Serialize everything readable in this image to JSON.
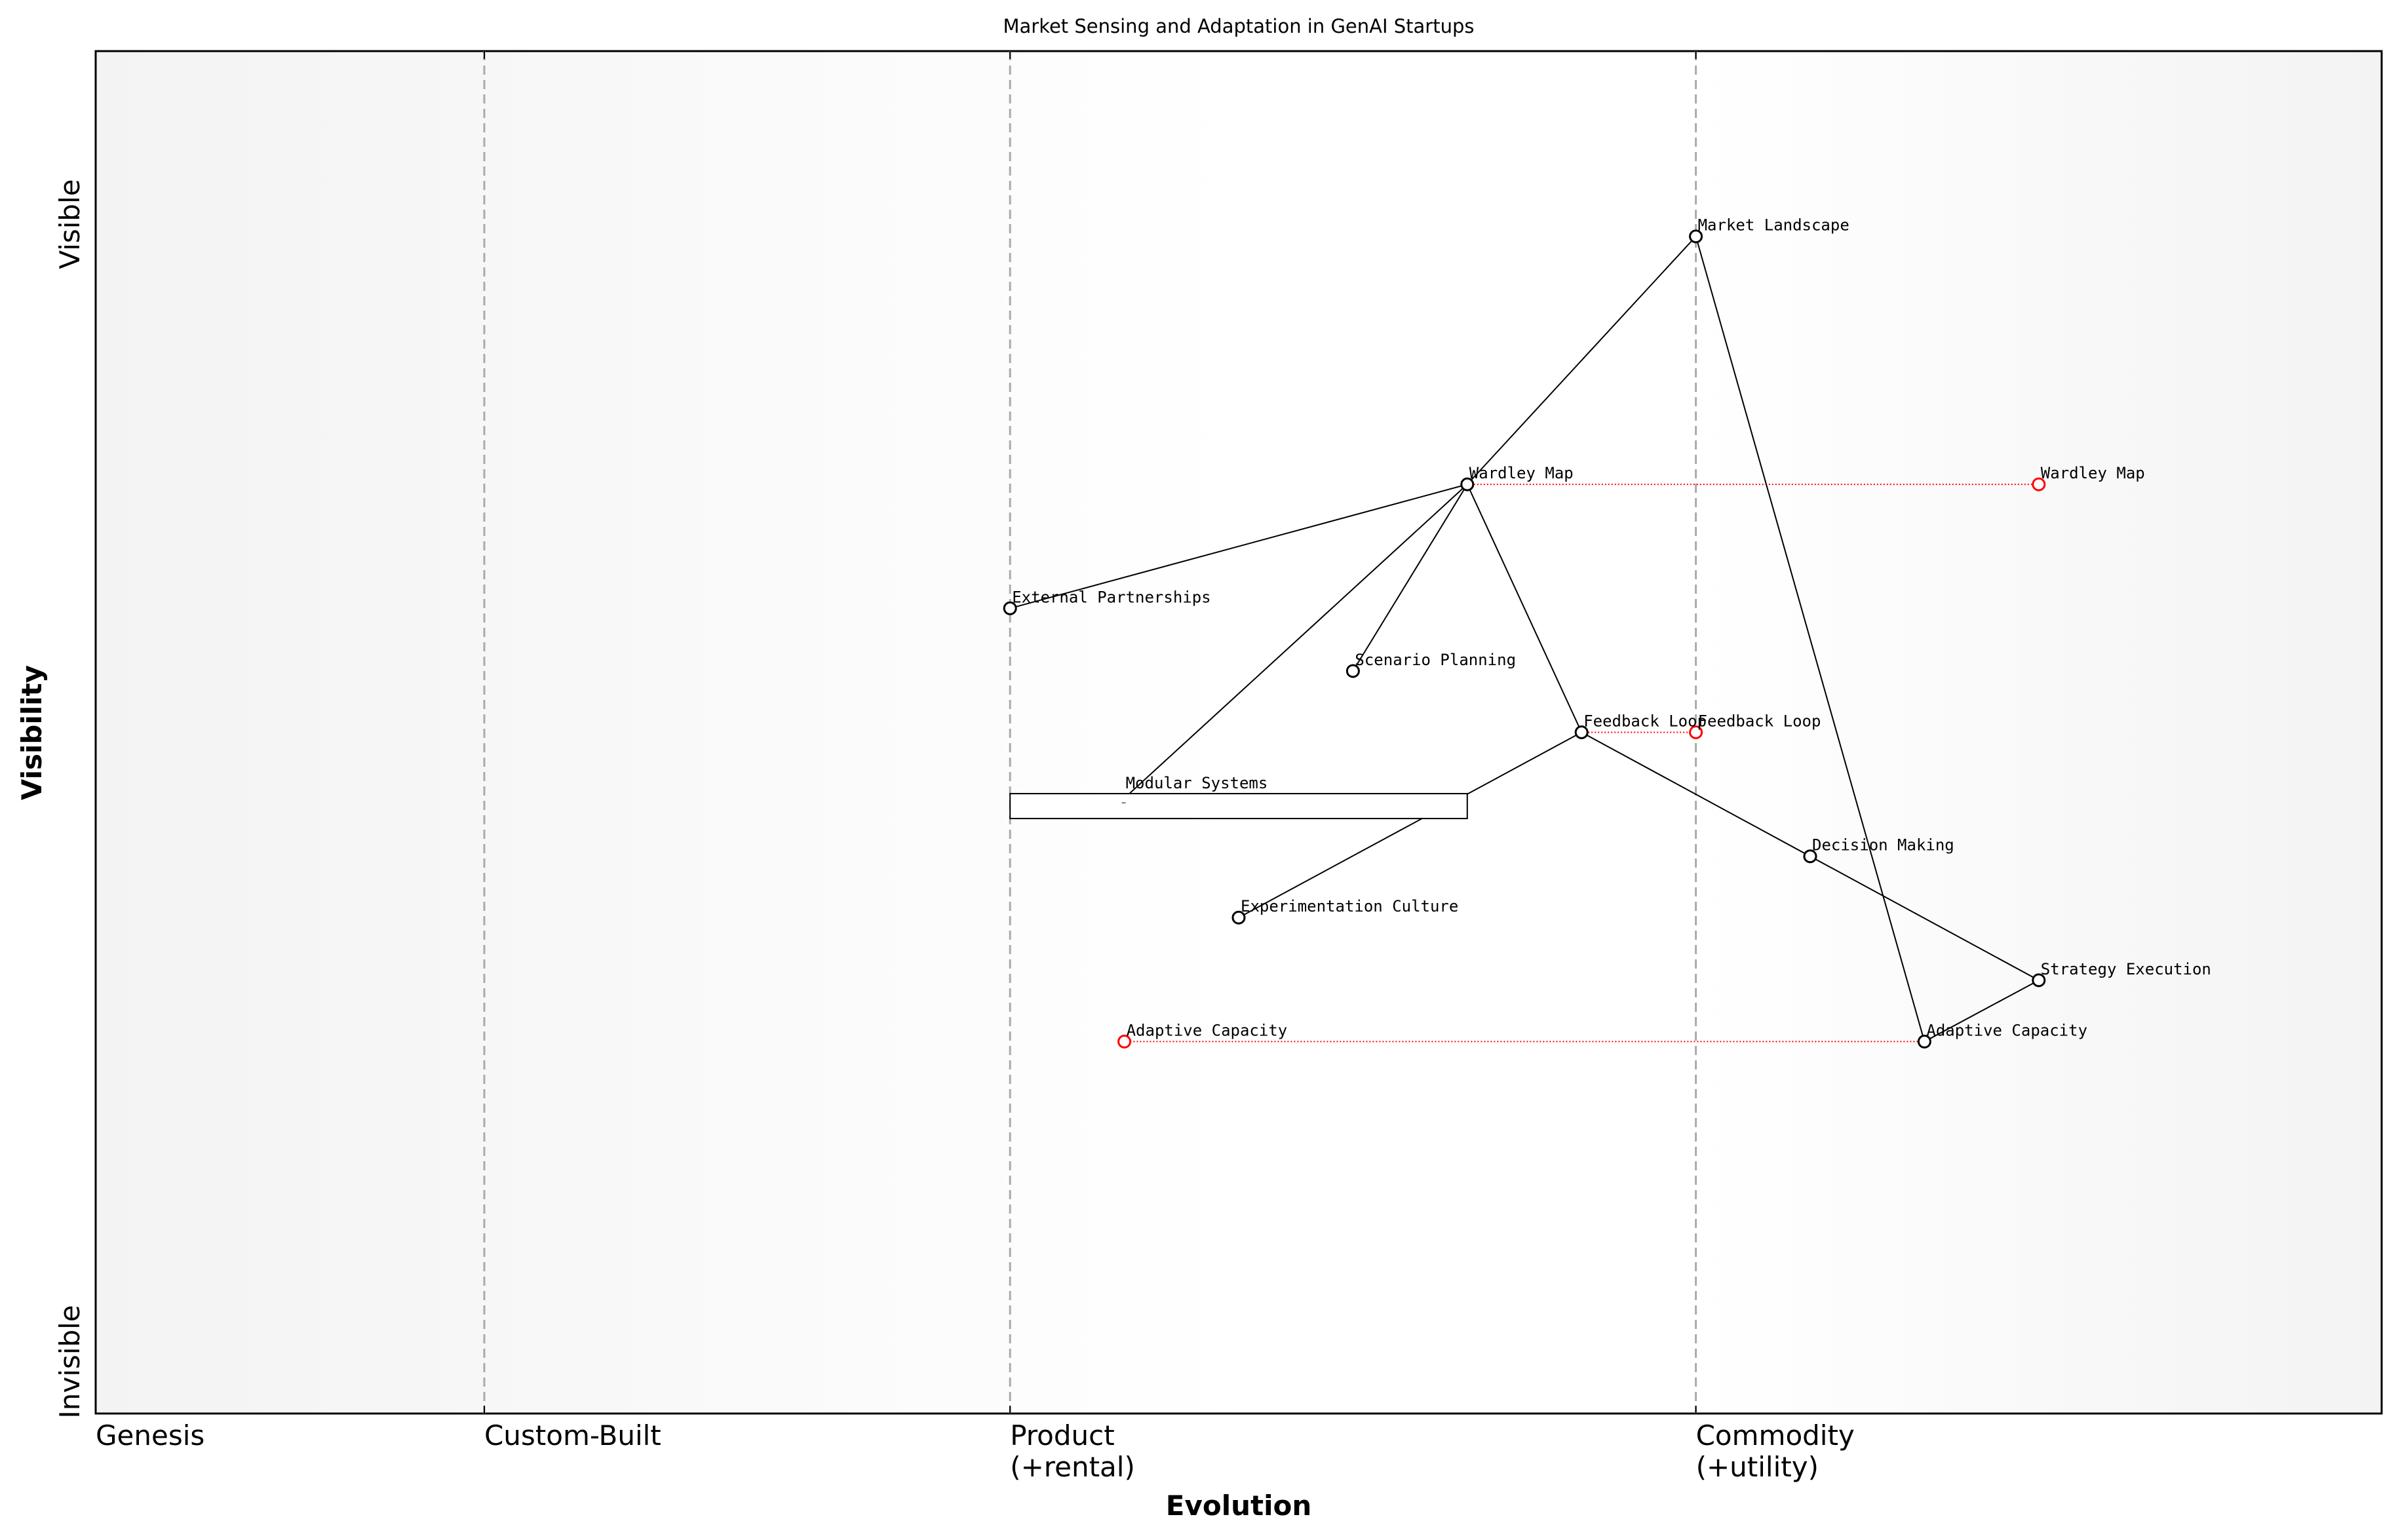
{
  "title": "Market Sensing and Adaptation in GenAI Startups",
  "xlabel": "Evolution",
  "ylabel": "Visibility",
  "y_ticks": {
    "top": "Visible",
    "bottom": "Invisible"
  },
  "stages": [
    {
      "label": "Genesis",
      "x": 0.0
    },
    {
      "label": "Custom-Built",
      "x": 0.17
    },
    {
      "label": "Product",
      "sublabel": "(+rental)",
      "x": 0.4
    },
    {
      "label": "Commodity",
      "sublabel": "(+utility)",
      "x": 0.7
    }
  ],
  "chart_data": {
    "type": "scatter",
    "title": "Market Sensing and Adaptation in GenAI Startups",
    "xlabel": "Evolution",
    "ylabel": "Visibility",
    "xlim": [
      0,
      1
    ],
    "ylim": [
      0,
      1
    ],
    "grid": false,
    "components": [
      {
        "id": "market",
        "name": "Market Landscape",
        "x": 0.7,
        "y": 0.864
      },
      {
        "id": "wardley",
        "name": "Wardley Map",
        "x": 0.6,
        "y": 0.682
      },
      {
        "id": "external",
        "name": "External Partnerships",
        "x": 0.4,
        "y": 0.591
      },
      {
        "id": "scenario",
        "name": "Scenario Planning",
        "x": 0.55,
        "y": 0.545
      },
      {
        "id": "feedback",
        "name": "Feedback Loop",
        "x": 0.65,
        "y": 0.5
      },
      {
        "id": "decision",
        "name": "Decision Making",
        "x": 0.75,
        "y": 0.409
      },
      {
        "id": "experiment",
        "name": "Experimentation Culture",
        "x": 0.5,
        "y": 0.364
      },
      {
        "id": "strategy",
        "name": "Strategy Execution",
        "x": 0.85,
        "y": 0.318
      },
      {
        "id": "adaptive",
        "name": "Adaptive Capacity",
        "x": 0.8,
        "y": 0.273
      }
    ],
    "dependencies": [
      [
        "market",
        "wardley"
      ],
      [
        "market",
        "adaptive"
      ],
      [
        "wardley",
        "external"
      ],
      [
        "wardley",
        "scenario"
      ],
      [
        "wardley",
        "feedback"
      ],
      [
        "wardley",
        "modular"
      ],
      [
        "feedback",
        "experiment"
      ],
      [
        "feedback",
        "decision"
      ],
      [
        "decision",
        "strategy"
      ],
      [
        "strategy",
        "adaptive"
      ]
    ],
    "pipeline": {
      "id": "modular",
      "name": "Modular Systems",
      "x": 0.45,
      "x_start": 0.4,
      "x_end": 0.6,
      "y": 0.455
    },
    "evolutions": [
      {
        "name": "Wardley Map",
        "from_x": 0.6,
        "to_x": 0.85,
        "y": 0.682
      },
      {
        "name": "Feedback Loop",
        "from_x": 0.65,
        "to_x": 0.7,
        "y": 0.5
      },
      {
        "name": "Adaptive Capacity",
        "from_x": 0.8,
        "to_x": 0.45,
        "y": 0.273
      }
    ],
    "colors": {
      "component": "#000000",
      "evolution": "#ff0000",
      "stage_line": "#aaaaaa"
    }
  }
}
